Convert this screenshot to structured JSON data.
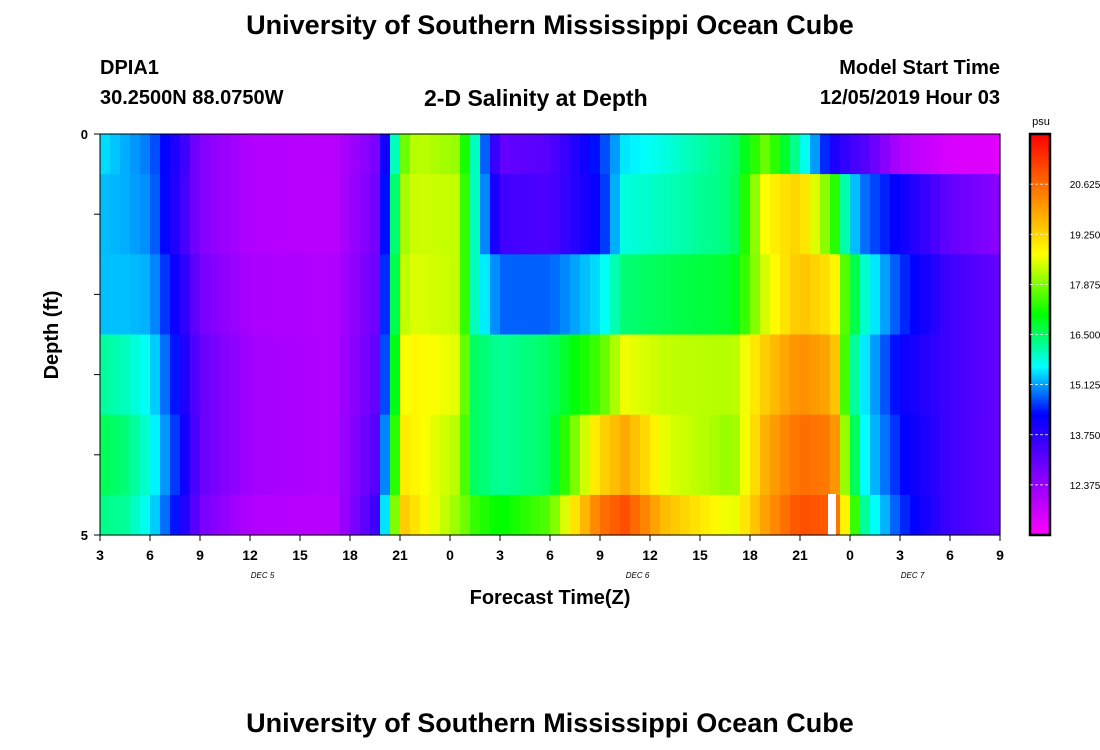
{
  "header": {
    "title": "University of Southern Mississippi Ocean Cube",
    "station_id": "DPIA1",
    "station_coords": "30.2500N 88.0750W",
    "product": "2-D Salinity at Depth",
    "model_start_label": "Model Start Time",
    "model_start_value": "12/05/2019 Hour 03"
  },
  "footer": {
    "title": "University of Southern Mississippi Ocean Cube"
  },
  "chart_data": {
    "type": "heatmap",
    "title": "2-D Salinity at Depth",
    "xlabel": "Forecast Time(Z)",
    "ylabel": "Depth (ft)",
    "ylim": [
      0,
      5
    ],
    "y_ticks": [
      0,
      1,
      2,
      3,
      4,
      5
    ],
    "y_tick_labels": [
      "0",
      "",
      "",
      "",
      "",
      "5"
    ],
    "x_range_hours": [
      0,
      54
    ],
    "x_tick_labels": [
      "3",
      "6",
      "9",
      "12",
      "15",
      "18",
      "21",
      "0",
      "3",
      "6",
      "9",
      "12",
      "15",
      "18",
      "21",
      "0",
      "3",
      "6",
      "9"
    ],
    "date_labels": [
      {
        "text": "DEC 5",
        "hour": 9.75
      },
      {
        "text": "DEC 6",
        "hour": 32.25
      },
      {
        "text": "DEC 7",
        "hour": 48.75
      }
    ],
    "colorbar": {
      "unit": "psu",
      "min": 11.0,
      "max": 22.0,
      "tick_values": [
        12.375,
        13.75,
        15.125,
        16.5,
        17.875,
        19.25,
        20.625
      ],
      "tick_labels": [
        "12.375",
        "13.750",
        "15.125",
        "16.500",
        "17.875",
        "19.250",
        "20.625"
      ]
    },
    "series_times_hours": [
      0,
      1.5,
      3,
      5,
      6,
      9,
      14,
      16.5,
      17.5,
      18,
      19,
      21.5,
      22.5,
      24,
      27,
      30,
      31.5,
      34,
      38,
      40,
      42,
      44,
      45,
      46,
      48,
      51,
      54
    ],
    "series": [
      {
        "name": "0 ft",
        "values": [
          15.5,
          15.2,
          14.9,
          13.6,
          12.6,
          12.0,
          11.9,
          12.7,
          15.0,
          17.5,
          18.3,
          18.0,
          16.0,
          13.0,
          13.2,
          14.5,
          15.5,
          15.8,
          16.4,
          17.8,
          16.0,
          14.0,
          13.5,
          13.2,
          12.0,
          11.5,
          11.4
        ]
      },
      {
        "name": "1 ft",
        "values": [
          15.3,
          15.2,
          15.0,
          13.5,
          12.6,
          12.0,
          11.9,
          12.8,
          15.4,
          18.0,
          18.4,
          18.3,
          16.0,
          13.5,
          13.3,
          14.3,
          15.8,
          16.0,
          16.4,
          18.8,
          19.3,
          17.5,
          15.5,
          14.8,
          14.2,
          13.0,
          12.5
        ]
      },
      {
        "name": "2 ft",
        "values": [
          15.3,
          15.3,
          15.2,
          13.8,
          12.8,
          12.1,
          12.0,
          12.9,
          15.6,
          18.2,
          18.5,
          18.3,
          16.0,
          14.8,
          14.8,
          15.5,
          16.4,
          16.6,
          16.8,
          18.5,
          19.5,
          19.0,
          17.0,
          15.8,
          14.6,
          13.5,
          13.0
        ]
      },
      {
        "name": "3 ft",
        "values": [
          16.2,
          16.0,
          15.6,
          14.0,
          13.0,
          12.2,
          12.0,
          13.0,
          15.8,
          18.6,
          18.8,
          18.5,
          16.5,
          16.2,
          16.5,
          17.5,
          18.6,
          18.3,
          18.2,
          19.4,
          20.2,
          19.8,
          16.5,
          15.4,
          14.2,
          13.5,
          13.0
        ]
      },
      {
        "name": "4 ft",
        "values": [
          16.6,
          16.4,
          15.8,
          14.2,
          13.0,
          12.2,
          12.0,
          13.2,
          16.2,
          19.0,
          18.8,
          18.2,
          16.5,
          16.2,
          16.5,
          19.2,
          19.8,
          18.5,
          18.0,
          19.8,
          20.6,
          20.4,
          17.0,
          15.5,
          14.4,
          13.5,
          13.0
        ]
      },
      {
        "name": "5 ft",
        "values": [
          16.3,
          16.2,
          15.6,
          14.0,
          12.8,
          12.0,
          11.9,
          13.5,
          16.8,
          19.5,
          19.0,
          18.0,
          17.4,
          17.0,
          17.6,
          20.5,
          21.0,
          19.5,
          18.5,
          20.0,
          21.0,
          20.8,
          18.0,
          16.0,
          14.6,
          13.5,
          13.0
        ]
      }
    ]
  }
}
